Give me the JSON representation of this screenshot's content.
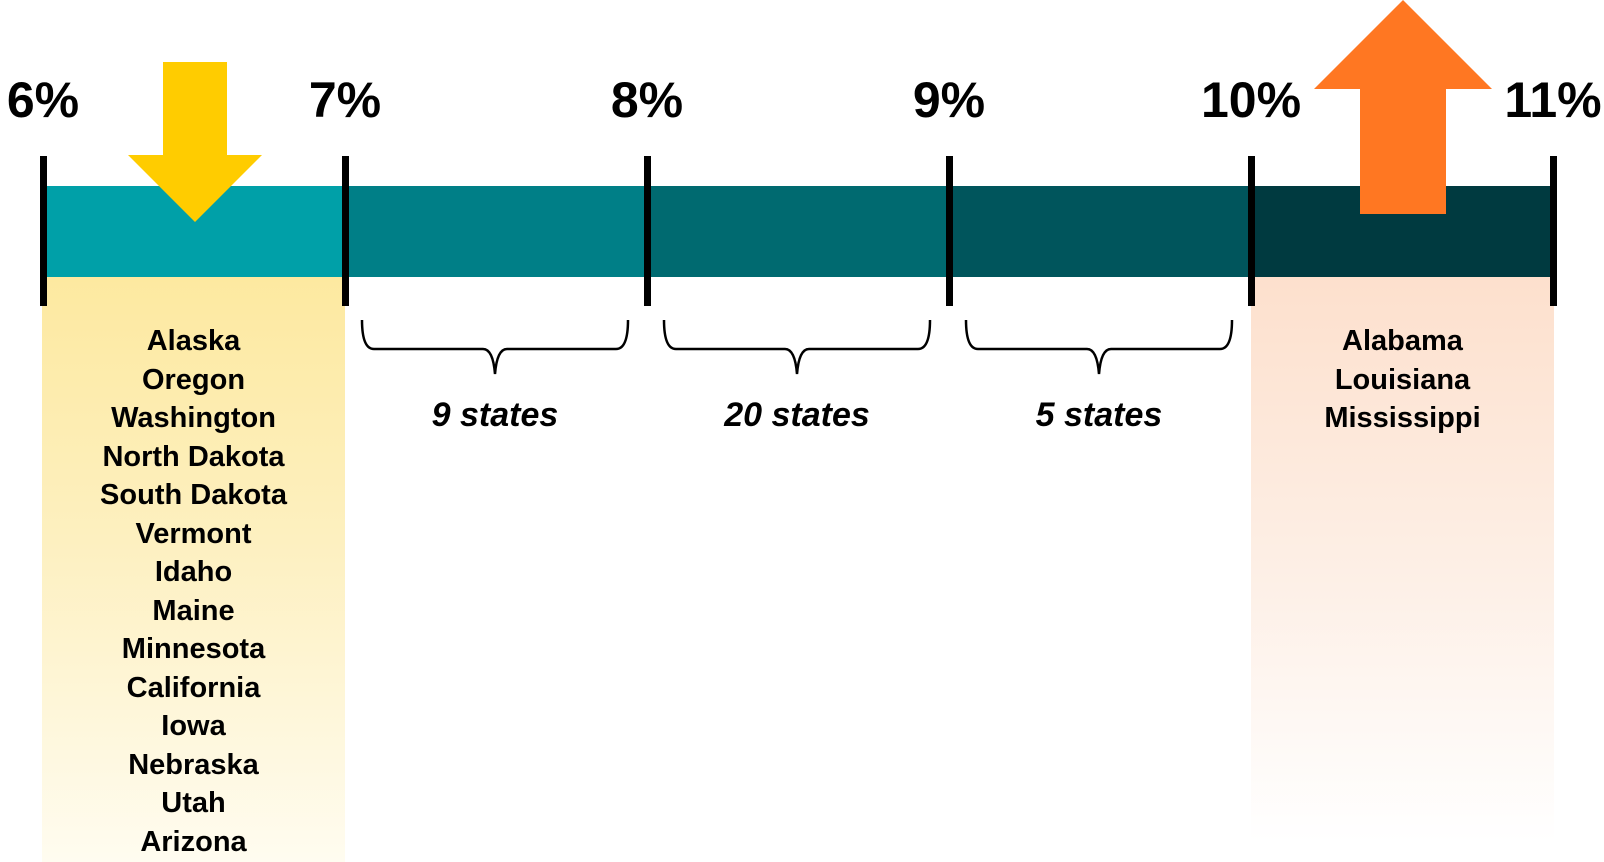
{
  "scale": {
    "ticks": [
      "6%",
      "7%",
      "8%",
      "9%",
      "10%",
      "11%"
    ],
    "segment_colors": [
      "#00a0a8",
      "#007f87",
      "#006a70",
      "#00555c",
      "#003a40"
    ]
  },
  "lowest_group": {
    "arrow_color": "#ffcc00",
    "arrow_direction": "down",
    "states": [
      "Alaska",
      "Oregon",
      "Washington",
      "North Dakota",
      "South Dakota",
      "Vermont",
      "Idaho",
      "Maine",
      "Minnesota",
      "California",
      "Iowa",
      "Nebraska",
      "Utah",
      "Arizona"
    ]
  },
  "middle_groups": [
    {
      "label": "9 states"
    },
    {
      "label": "20 states"
    },
    {
      "label": "5 states"
    }
  ],
  "highest_group": {
    "arrow_color": "#ff7722",
    "arrow_direction": "up",
    "states": [
      "Alabama",
      "Louisiana",
      "Mississippi"
    ]
  }
}
